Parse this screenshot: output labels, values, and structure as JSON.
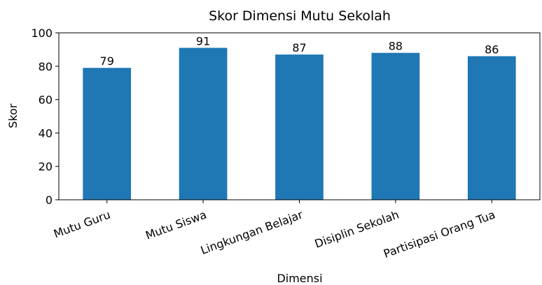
{
  "chart_data": {
    "type": "bar",
    "title": "Skor Dimensi Mutu Sekolah",
    "x_label": "Dimensi",
    "y_label": "Skor",
    "categories": [
      "Mutu Guru",
      "Mutu Siswa",
      "Lingkungan Belajar",
      "Disiplin Sekolah",
      "Partisipasi Orang Tua"
    ],
    "values": [
      79,
      91,
      87,
      88,
      86
    ],
    "color": "#1f77b4",
    "ylim": [
      0,
      100
    ],
    "yticks": [
      0,
      20,
      40,
      60,
      80,
      100
    ],
    "grid": false
  }
}
